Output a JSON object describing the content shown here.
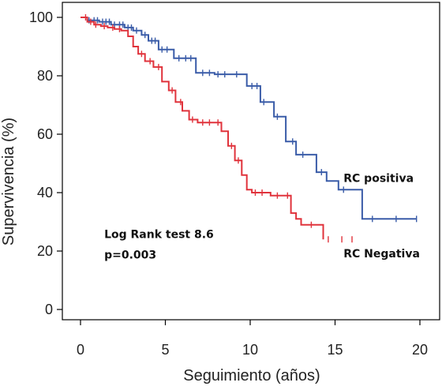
{
  "chart_data": {
    "type": "line",
    "title": "",
    "xlabel": "Seguimiento (años)",
    "ylabel": "Supervivencia (%)",
    "xlim": [
      0,
      20
    ],
    "ylim": [
      0,
      100
    ],
    "xticks": [
      0,
      5,
      10,
      15,
      20
    ],
    "yticks": [
      0,
      20,
      40,
      60,
      80,
      100
    ],
    "xtick_labels": [
      "0",
      "5",
      "10",
      "15",
      "20"
    ],
    "ytick_labels": [
      "0",
      "20",
      "40",
      "60",
      "80",
      "100"
    ],
    "grid": false,
    "legend": "none",
    "series": [
      {
        "name": "RC positiva",
        "color": "#3a5ca8",
        "step": true,
        "x": [
          0,
          0.4,
          1.1,
          1.8,
          2.6,
          3.1,
          3.6,
          4.0,
          4.6,
          5.5,
          6.8,
          7.9,
          9.8,
          10.6,
          11.4,
          12.1,
          12.7,
          13.9,
          14.5,
          15.2,
          16.6,
          19.8
        ],
        "y": [
          100,
          99,
          98.5,
          97.5,
          96.5,
          95.5,
          94,
          92,
          89,
          86,
          81,
          80.5,
          76.5,
          71,
          66,
          57.5,
          53,
          47,
          44,
          41,
          31,
          31
        ],
        "censor_x": [
          0.5,
          0.8,
          1.0,
          1.3,
          1.5,
          1.7,
          2.0,
          2.3,
          2.5,
          2.8,
          3.0,
          3.3,
          3.8,
          4.2,
          4.4,
          4.8,
          5.1,
          5.8,
          6.2,
          6.5,
          7.2,
          7.6,
          8.1,
          8.5,
          9.2,
          10.1,
          10.4,
          10.8,
          11.6,
          12.5,
          13.1,
          14.2,
          15.5,
          17.2,
          18.6,
          19.8
        ]
      },
      {
        "name": "RC Negativa",
        "color": "#e0333c",
        "step": true,
        "x": [
          0,
          0.4,
          0.8,
          1.2,
          1.6,
          2.0,
          2.4,
          2.8,
          3.1,
          3.4,
          3.8,
          4.3,
          4.8,
          5.2,
          5.6,
          6.0,
          6.4,
          6.9,
          8.3,
          8.7,
          9.1,
          9.5,
          9.8,
          10.1,
          10.5,
          11.2,
          12.4,
          12.7,
          13.0,
          13.4,
          14.3
        ],
        "y": [
          100,
          98.5,
          97.5,
          97,
          96.5,
          96,
          95.5,
          93.5,
          90,
          87.5,
          85,
          83,
          78,
          75,
          71,
          68,
          65,
          64,
          61,
          56,
          51,
          46,
          41,
          40,
          40,
          39,
          33,
          31,
          29,
          29,
          24
        ],
        "censor_x": [
          0.3,
          0.6,
          0.9,
          1.4,
          1.9,
          2.3,
          3.6,
          4.1,
          4.6,
          5.4,
          5.9,
          6.6,
          7.2,
          7.6,
          8.1,
          8.9,
          9.3,
          10.3,
          10.7,
          11.6,
          12.2,
          13.6,
          14.6,
          15.4,
          16.0
        ]
      }
    ],
    "annotations": [
      {
        "text": "Log Rank test 8.6",
        "x": 1.4,
        "y": 24.5
      },
      {
        "text": "p=0.003",
        "x": 1.4,
        "y": 17.5
      },
      {
        "text": "RC positiva",
        "x": 15.5,
        "y": 43.7
      },
      {
        "text": "RC Negativa",
        "x": 15.5,
        "y": 17.9
      }
    ]
  }
}
